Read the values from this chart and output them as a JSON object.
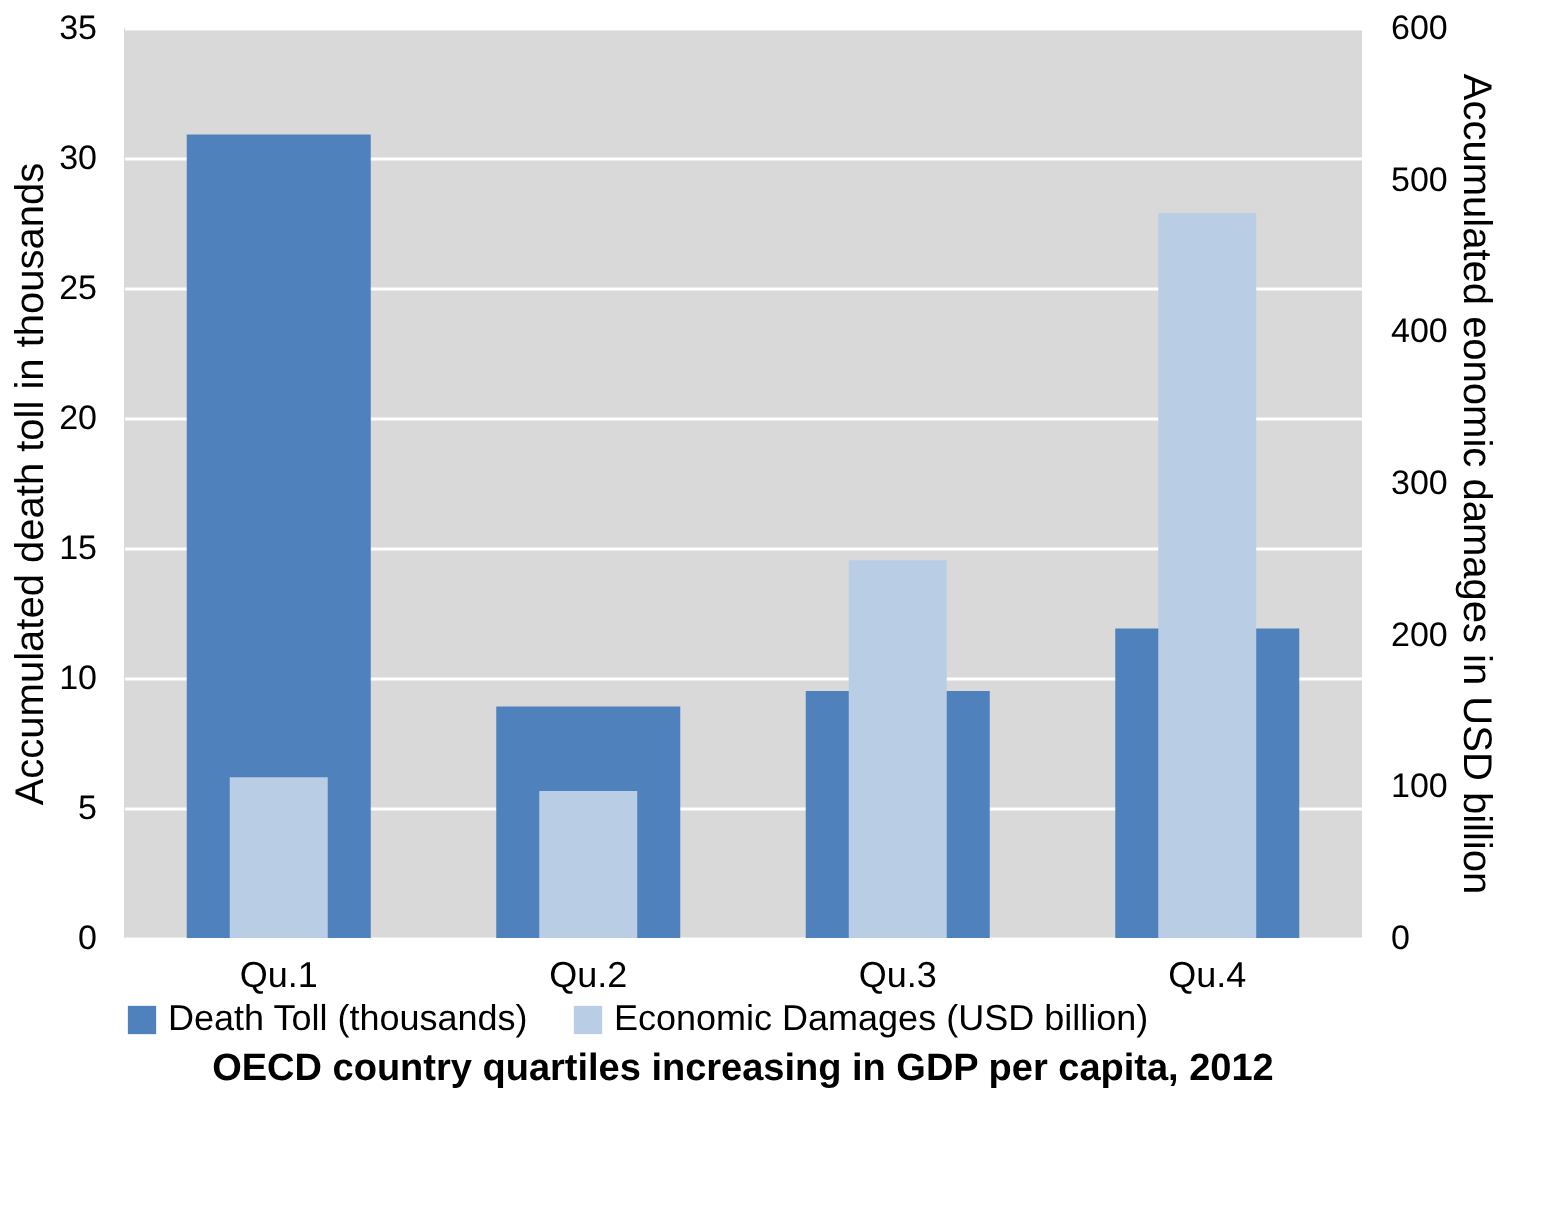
{
  "chart_data": {
    "type": "bar",
    "xlabel": "OECD country quartiles increasing in GDP per capita, 2012",
    "ylabel": "Accumulated death toll in thousands",
    "y2label": "Accumulated eonomic damages in USD billion",
    "categories": [
      "Qu.1",
      "Qu.2",
      "Qu.3",
      "Qu.4"
    ],
    "series": [
      {
        "name": "Death Toll (thousands)",
        "color": "#4f81bd",
        "values": [
          30.9,
          8.9,
          9.5,
          11.9
        ]
      },
      {
        "name": "Economic Damages (USD billion)",
        "color": "#b9cde5",
        "axis": "y2",
        "values": [
          106,
          97,
          249,
          478
        ]
      }
    ],
    "ylim": [
      0,
      35
    ],
    "yticks": [
      0,
      5,
      10,
      15,
      20,
      25,
      30,
      35
    ],
    "y2lim": [
      0,
      600
    ],
    "y2ticks": [
      0,
      100,
      200,
      300,
      400,
      500,
      600
    ],
    "grid": "y",
    "legend": "bottom"
  }
}
